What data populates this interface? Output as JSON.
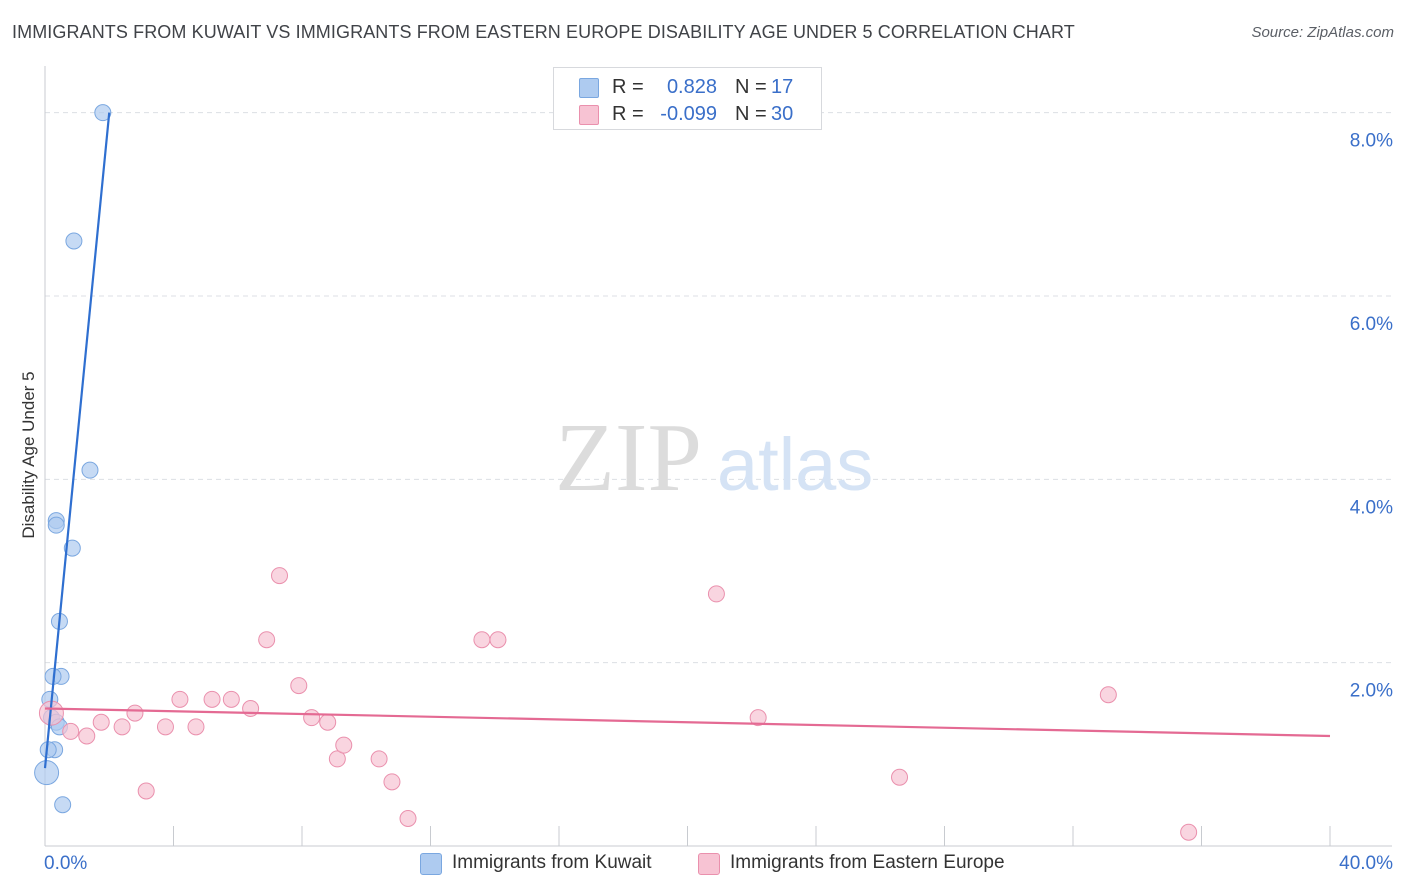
{
  "title": "IMMIGRANTS FROM KUWAIT VS IMMIGRANTS FROM EASTERN EUROPE DISABILITY AGE UNDER 5 CORRELATION CHART",
  "source": "Source: ZipAtlas.com",
  "watermark": {
    "zip": "ZIP",
    "atlas": "atlas"
  },
  "legend_stats": [
    {
      "r_label": "R =",
      "r_value": "0.828",
      "n_label": "N =",
      "n_value": "17",
      "color": "#aecbf0",
      "border": "#7aa7e0"
    },
    {
      "r_label": "R =",
      "r_value": "-0.099",
      "n_label": "N =",
      "n_value": "30",
      "color": "#f7c3d3",
      "border": "#ea90ad"
    }
  ],
  "colors": {
    "kuwait_fill": "#aecbf0",
    "kuwait_stroke": "#7aa7e0",
    "kuwait_line": "#2f6fd0",
    "ee_fill": "#f7c3d3",
    "ee_stroke": "#ea90ad",
    "ee_line": "#e46a93",
    "tick_label": "#3a6fc9",
    "grid": "#dcdfe4",
    "axis": "#c8cbd0"
  },
  "chart_data": {
    "type": "scatter",
    "title": "IMMIGRANTS FROM KUWAIT VS IMMIGRANTS FROM EASTERN EUROPE DISABILITY AGE UNDER 5 CORRELATION CHART",
    "xlabel": "",
    "ylabel": "Disability Age Under 5",
    "xlim": [
      0,
      40
    ],
    "ylim": [
      0,
      8.4
    ],
    "x_tick_labels": [
      "0.0%",
      "40.0%"
    ],
    "y_ticks": [
      2,
      4,
      6,
      8
    ],
    "y_tick_labels": [
      "2.0%",
      "4.0%",
      "6.0%",
      "8.0%"
    ],
    "grid": true,
    "legend_position": "bottom",
    "series": [
      {
        "name": "Immigrants from Kuwait",
        "color": "#aecbf0",
        "points": [
          [
            1.8,
            8.0
          ],
          [
            0.9,
            6.6
          ],
          [
            1.4,
            4.1
          ],
          [
            0.35,
            3.55
          ],
          [
            0.35,
            3.5
          ],
          [
            0.85,
            3.25
          ],
          [
            0.45,
            2.45
          ],
          [
            0.5,
            1.85
          ],
          [
            0.25,
            1.85
          ],
          [
            0.15,
            1.6
          ],
          [
            0.2,
            1.4
          ],
          [
            0.35,
            1.35
          ],
          [
            0.45,
            1.3
          ],
          [
            0.3,
            1.05
          ],
          [
            0.1,
            1.05
          ],
          [
            0.05,
            0.8
          ],
          [
            0.55,
            0.45
          ]
        ],
        "trend": {
          "x": [
            0.0,
            2.0
          ],
          "y": [
            0.85,
            8.0
          ]
        }
      },
      {
        "name": "Immigrants from Eastern Europe",
        "color": "#f7c3d3",
        "points": [
          [
            0.2,
            1.45
          ],
          [
            0.8,
            1.25
          ],
          [
            1.3,
            1.2
          ],
          [
            1.75,
            1.35
          ],
          [
            2.4,
            1.3
          ],
          [
            2.8,
            1.45
          ],
          [
            3.15,
            0.6
          ],
          [
            3.75,
            1.3
          ],
          [
            4.2,
            1.6
          ],
          [
            4.7,
            1.3
          ],
          [
            5.2,
            1.6
          ],
          [
            5.8,
            1.6
          ],
          [
            6.4,
            1.5
          ],
          [
            6.9,
            2.25
          ],
          [
            7.3,
            2.95
          ],
          [
            7.9,
            1.75
          ],
          [
            8.3,
            1.4
          ],
          [
            8.8,
            1.35
          ],
          [
            9.1,
            0.95
          ],
          [
            9.3,
            1.1
          ],
          [
            10.4,
            0.95
          ],
          [
            10.8,
            0.7
          ],
          [
            11.3,
            0.3
          ],
          [
            13.6,
            2.25
          ],
          [
            14.1,
            2.25
          ],
          [
            20.9,
            2.75
          ],
          [
            22.2,
            1.4
          ],
          [
            26.6,
            0.75
          ],
          [
            33.1,
            1.65
          ],
          [
            35.6,
            0.15
          ]
        ],
        "trend": {
          "x": [
            0.0,
            40.0
          ],
          "y": [
            1.5,
            1.2
          ]
        }
      }
    ]
  }
}
